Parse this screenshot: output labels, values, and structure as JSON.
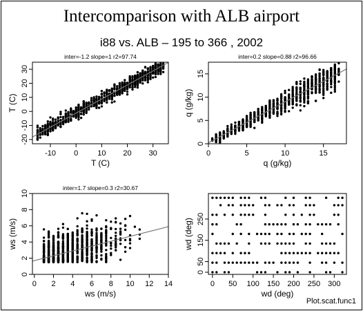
{
  "figure": {
    "title": "Intercomparison with ALB airport",
    "subtitle": "i88 vs. ALB – 195 to 366 , 2002",
    "footer": "Plot.scat.func1"
  },
  "chart_data": [
    {
      "type": "scatter",
      "title": "inter=-1.2 slope=1 r2=97.74",
      "xlabel": "T (C)",
      "ylabel": "T (C)",
      "xlim": [
        -17,
        36
      ],
      "ylim": [
        -23,
        35
      ],
      "xticks": [
        -10,
        0,
        10,
        20,
        30
      ],
      "yticks": [
        -20,
        -10,
        0,
        10,
        20,
        30
      ],
      "fit": {
        "intercept": -1.2,
        "slope": 1
      },
      "grid": false,
      "series_description": "dense cloud along 1:1 line from about -16 to 34"
    },
    {
      "type": "scatter",
      "title": "inter=0.2 slope=0.88 r2=96.66",
      "xlabel": "q (g/kg)",
      "ylabel": "q (g/kg)",
      "xlim": [
        0,
        18
      ],
      "ylim": [
        0,
        17.5
      ],
      "xticks": [
        0,
        5,
        10,
        15
      ],
      "yticks": [
        0,
        5,
        10,
        15
      ],
      "fit": {
        "intercept": 0.2,
        "slope": 0.88
      },
      "grid": false,
      "series_description": "dense cloud from about 0.5 to 17"
    },
    {
      "type": "scatter",
      "title": "inter=1.7 slope=0.3 r2=30.67",
      "xlabel": "ws (m/s)",
      "ylabel": "ws (m/s)",
      "xlim": [
        -0.2,
        14
      ],
      "ylim": [
        0,
        10
      ],
      "xticks": [
        0,
        2,
        4,
        6,
        8,
        10,
        12,
        14
      ],
      "yticks": [
        0,
        2,
        4,
        6,
        8,
        10
      ],
      "fit": {
        "intercept": 1.7,
        "slope": 0.3
      },
      "grid": false,
      "series_description": "wide spread, weak relation"
    },
    {
      "type": "scatter",
      "title": "",
      "xlabel": "wd (deg)",
      "ylabel": "wd (deg)",
      "xlim": [
        -10,
        330
      ],
      "ylim": [
        -10,
        370
      ],
      "xticks": [
        0,
        50,
        100,
        150,
        200,
        250,
        300
      ],
      "yticks": [
        0,
        50,
        150,
        250
      ],
      "fit": null,
      "grid": false,
      "series_description": "points on a 10-degree x grid vs discrete y levels"
    }
  ]
}
